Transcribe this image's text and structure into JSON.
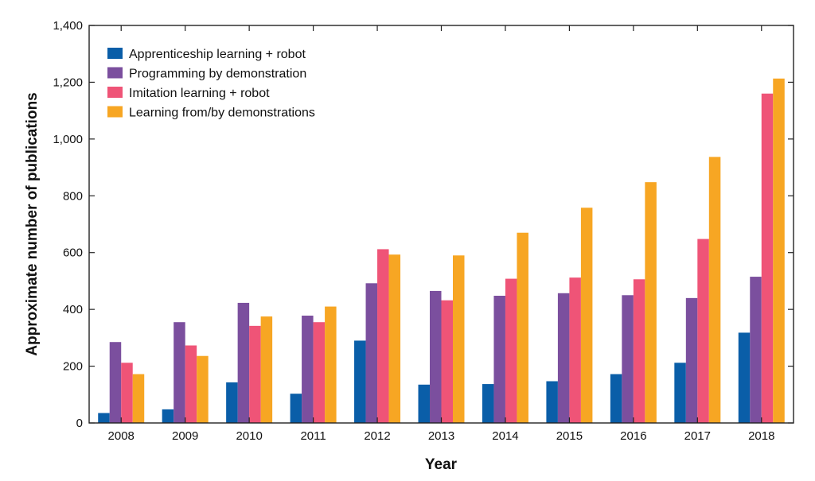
{
  "chart_data": {
    "type": "bar",
    "title": "",
    "xlabel": "Year",
    "ylabel": "Approximate number of publications",
    "categories": [
      "2008",
      "2009",
      "2010",
      "2011",
      "2012",
      "2013",
      "2014",
      "2015",
      "2016",
      "2017",
      "2018"
    ],
    "ylim": [
      0,
      1400
    ],
    "yticks": [
      0,
      200,
      400,
      600,
      800,
      1000,
      1200,
      1400
    ],
    "ytick_labels": [
      "0",
      "200",
      "400",
      "600",
      "800",
      "1,000",
      "1,200",
      "1,400"
    ],
    "legend_position": "top-left",
    "grid": false,
    "series": [
      {
        "name": "Apprenticeship learning + robot",
        "color": "#0a5ea8",
        "values": [
          35,
          48,
          143,
          103,
          290,
          135,
          137,
          147,
          172,
          212,
          318
        ]
      },
      {
        "name": "Programming by demonstration",
        "color": "#7b4f9e",
        "values": [
          285,
          355,
          423,
          378,
          492,
          465,
          448,
          457,
          450,
          440,
          515
        ]
      },
      {
        "name": "Imitation learning + robot",
        "color": "#ef5477",
        "values": [
          212,
          273,
          342,
          355,
          612,
          432,
          508,
          512,
          506,
          648,
          1160
        ]
      },
      {
        "name": "Learning from/by demonstrations",
        "color": "#f7a623",
        "values": [
          172,
          236,
          375,
          410,
          593,
          590,
          670,
          758,
          848,
          937,
          1213
        ]
      }
    ]
  }
}
